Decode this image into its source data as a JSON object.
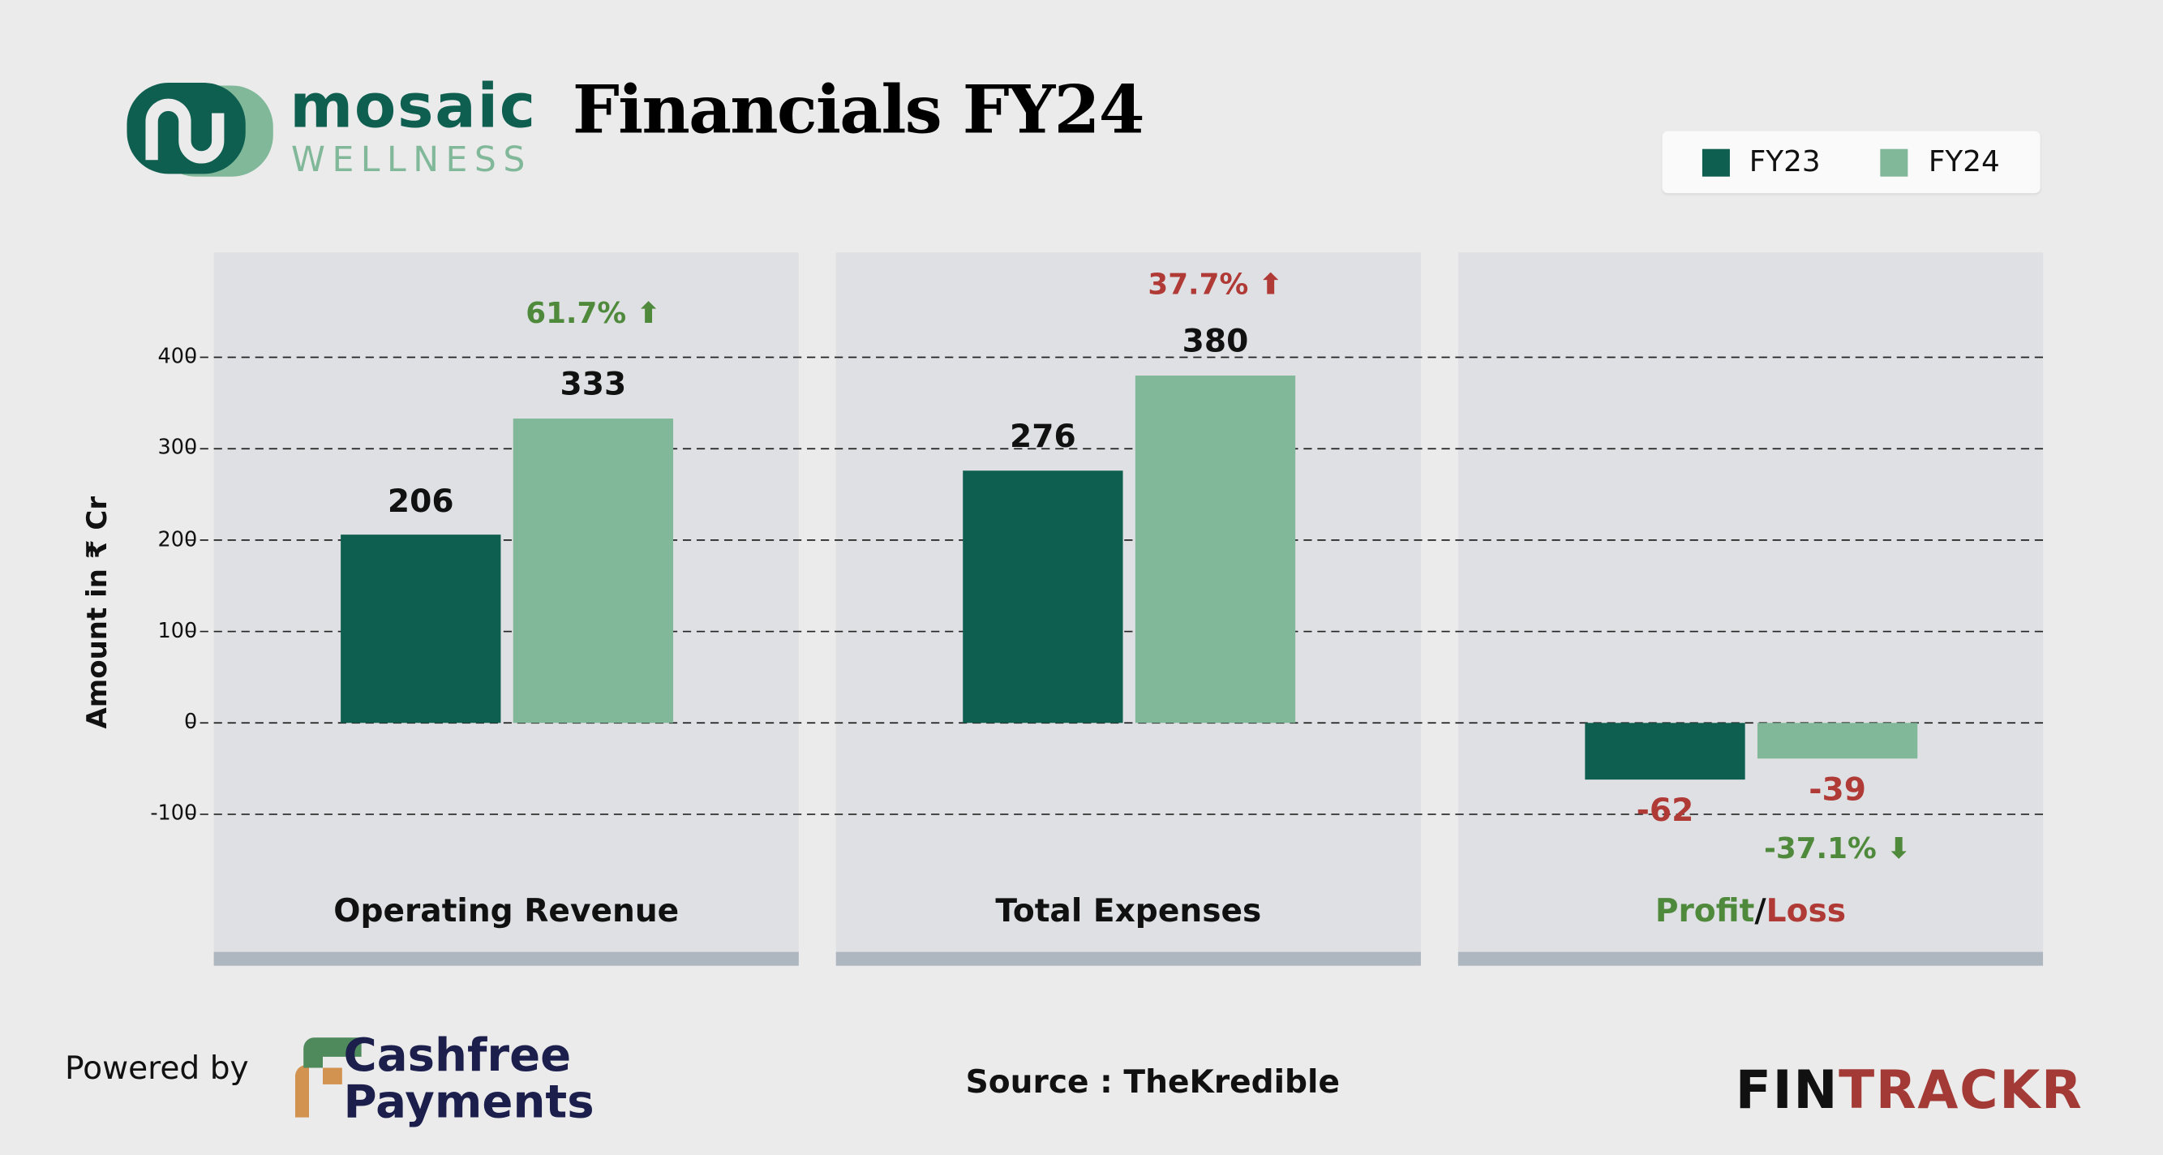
{
  "header": {
    "logo_text": "mosaic",
    "logo_subtext": "WELLNESS",
    "title": "Financials FY24"
  },
  "colors": {
    "fy23": "#0f5f50",
    "fy24": "#80b899",
    "positive": "#4f8a3c",
    "negative": "#b03a36",
    "panel": "#dfe0e3"
  },
  "chart_data": {
    "type": "bar",
    "ylabel": "Amount in ₹ Cr",
    "ylim": [
      -200,
      500
    ],
    "yticks": [
      -100,
      0,
      100,
      200,
      300,
      400
    ],
    "ytick_labels": [
      "-100",
      "0",
      "100",
      "200",
      "300",
      "400"
    ],
    "grid": true,
    "legend": {
      "position": "top-right",
      "entries": [
        "FY23",
        "FY24"
      ]
    },
    "categories": [
      "Operating Revenue",
      "Total Expenses",
      "Profit/Loss"
    ],
    "series": [
      {
        "name": "FY23",
        "values": [
          206,
          276,
          -62
        ]
      },
      {
        "name": "FY24",
        "values": [
          333,
          380,
          -39
        ]
      }
    ],
    "value_labels": {
      "FY23": [
        "206",
        "276",
        "-62"
      ],
      "FY24": [
        "333",
        "380",
        "-39"
      ]
    },
    "changes": [
      {
        "label": "61.7%",
        "direction": "up",
        "color": "positive"
      },
      {
        "label": "37.7%",
        "direction": "up",
        "color": "negative"
      },
      {
        "label": "-37.1%",
        "direction": "down",
        "color": "positive"
      }
    ],
    "profit_label": "Profit",
    "loss_label": "Loss",
    "separator": "/"
  },
  "footer": {
    "powered_by": "Powered by",
    "sponsor_line1": "Cashfree",
    "sponsor_line2": "Payments",
    "source": "Source : TheKredible",
    "brand_a": "FIN",
    "brand_b": "TRACKR"
  }
}
